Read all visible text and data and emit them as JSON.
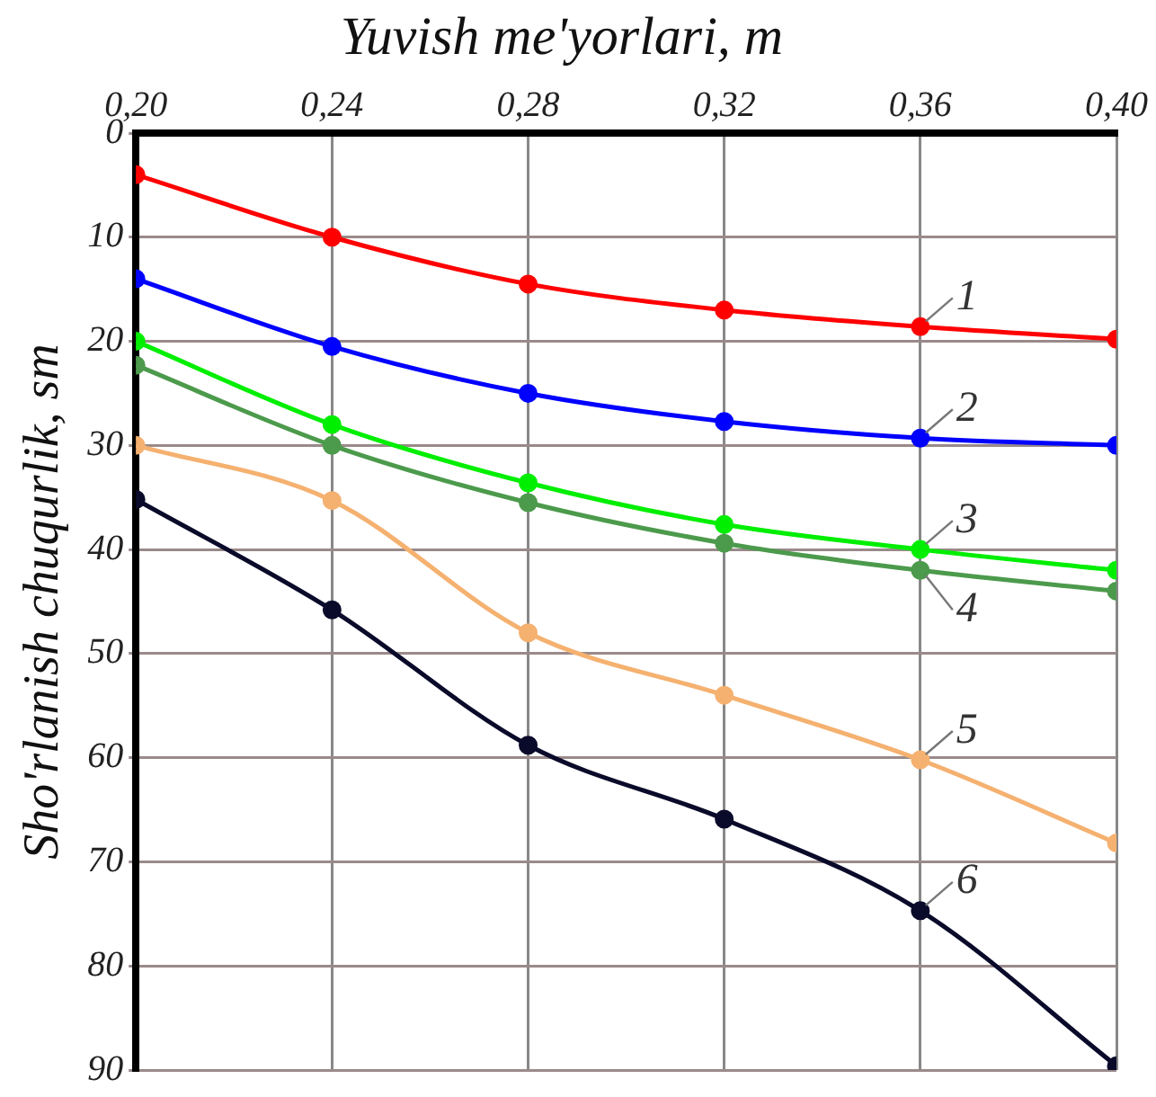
{
  "chart_data": {
    "type": "line",
    "title": "Yuvish me'yorlari, m",
    "ylabel": "Sho'rlanish chuqurlik, sm",
    "x": [
      0.2,
      0.24,
      0.28,
      0.32,
      0.36,
      0.4
    ],
    "xlim": [
      0.2,
      0.4
    ],
    "xticks": [
      {
        "value": 0.2,
        "label": "0,20"
      },
      {
        "value": 0.24,
        "label": "0,24"
      },
      {
        "value": 0.28,
        "label": "0,28"
      },
      {
        "value": 0.32,
        "label": "0,32"
      },
      {
        "value": 0.36,
        "label": "0,36"
      },
      {
        "value": 0.4,
        "label": "0,40"
      }
    ],
    "ylim": [
      90,
      0
    ],
    "yticks": [
      0,
      10,
      20,
      30,
      40,
      50,
      60,
      70,
      80,
      90
    ],
    "grid": true,
    "legend": false,
    "marker": "circle",
    "line_style": "solid",
    "series": [
      {
        "name": "1",
        "color": "#ff0000",
        "values": [
          4,
          10,
          14.5,
          17,
          18.6,
          19.8
        ]
      },
      {
        "name": "2",
        "color": "#0000ff",
        "values": [
          14,
          20.5,
          25,
          27.7,
          29.3,
          30
        ]
      },
      {
        "name": "3",
        "color": "#00ee00",
        "values": [
          20,
          28,
          33.6,
          37.6,
          40,
          42
        ]
      },
      {
        "name": "4",
        "color": "#4c9a4c",
        "values": [
          22.3,
          30,
          35.5,
          39.4,
          42,
          44
        ]
      },
      {
        "name": "5",
        "color": "#f5b170",
        "values": [
          30,
          35.3,
          48,
          54,
          60.2,
          68.2
        ]
      },
      {
        "name": "6",
        "color": "#0a0a2a",
        "values": [
          35.2,
          45.8,
          58.8,
          65.9,
          74.7,
          89.6
        ]
      }
    ]
  }
}
